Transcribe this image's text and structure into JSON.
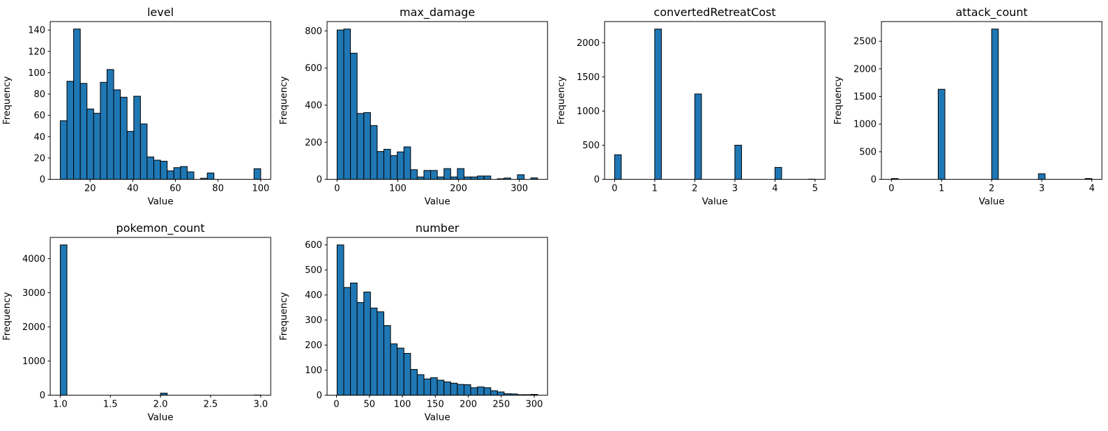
{
  "figure": {
    "background": "#ffffff",
    "bar_fill": "#1f77b4",
    "bar_edge": "#000000",
    "axis_color": "#000000",
    "text_color": "#000000"
  },
  "chart_data": [
    {
      "type": "bar",
      "subtype": "histogram",
      "title": "level",
      "xlabel": "Value",
      "ylabel": "Frequency",
      "bin_start": 6,
      "bin_width": 3.1333,
      "values": [
        55,
        92,
        141,
        90,
        66,
        62,
        91,
        103,
        84,
        77,
        45,
        78,
        52,
        21,
        18,
        17,
        8,
        11,
        12,
        7,
        0,
        1,
        6,
        0,
        0,
        0,
        0,
        0,
        0,
        10
      ],
      "xlim": [
        1.3,
        104.7
      ],
      "ylim": [
        0,
        148
      ],
      "grid": false,
      "xticks": [
        {
          "v": 20,
          "label": "20"
        },
        {
          "v": 40,
          "label": "40"
        },
        {
          "v": 60,
          "label": "60"
        },
        {
          "v": 80,
          "label": "80"
        },
        {
          "v": 100,
          "label": "100"
        }
      ],
      "yticks": [
        {
          "v": 0,
          "label": "0"
        },
        {
          "v": 20,
          "label": "20"
        },
        {
          "v": 40,
          "label": "40"
        },
        {
          "v": 60,
          "label": "60"
        },
        {
          "v": 80,
          "label": "80"
        },
        {
          "v": 100,
          "label": "100"
        },
        {
          "v": 120,
          "label": "120"
        },
        {
          "v": 140,
          "label": "140"
        }
      ]
    },
    {
      "type": "bar",
      "subtype": "histogram",
      "title": "max_damage",
      "xlabel": "Value",
      "ylabel": "Frequency",
      "bin_start": 0,
      "bin_width": 11,
      "values": [
        805,
        810,
        680,
        355,
        360,
        290,
        150,
        162,
        128,
        148,
        175,
        52,
        13,
        48,
        48,
        13,
        58,
        13,
        58,
        13,
        13,
        18,
        18,
        0,
        3,
        7,
        0,
        25,
        0,
        8
      ],
      "xlim": [
        -16.5,
        346.5
      ],
      "ylim": [
        0,
        850.5
      ],
      "grid": false,
      "xticks": [
        {
          "v": 0,
          "label": "0"
        },
        {
          "v": 100,
          "label": "100"
        },
        {
          "v": 200,
          "label": "200"
        },
        {
          "v": 300,
          "label": "300"
        }
      ],
      "yticks": [
        {
          "v": 0,
          "label": "0"
        },
        {
          "v": 200,
          "label": "200"
        },
        {
          "v": 400,
          "label": "400"
        },
        {
          "v": 600,
          "label": "600"
        },
        {
          "v": 800,
          "label": "800"
        }
      ]
    },
    {
      "type": "bar",
      "subtype": "histogram",
      "title": "convertedRetreatCost",
      "xlabel": "Value",
      "ylabel": "Frequency",
      "bin_start": 0,
      "bin_width": 0.16667,
      "values": [
        360,
        0,
        0,
        0,
        0,
        0,
        2200,
        0,
        0,
        0,
        0,
        0,
        1250,
        0,
        0,
        0,
        0,
        0,
        500,
        0,
        0,
        0,
        0,
        0,
        175,
        0,
        0,
        0,
        0,
        3
      ],
      "xlim": [
        -0.25,
        5.25
      ],
      "ylim": [
        0,
        2310
      ],
      "grid": false,
      "xticks": [
        {
          "v": 0,
          "label": "0"
        },
        {
          "v": 1,
          "label": "1"
        },
        {
          "v": 2,
          "label": "2"
        },
        {
          "v": 3,
          "label": "3"
        },
        {
          "v": 4,
          "label": "4"
        },
        {
          "v": 5,
          "label": "5"
        }
      ],
      "yticks": [
        {
          "v": 0,
          "label": "0"
        },
        {
          "v": 500,
          "label": "500"
        },
        {
          "v": 1000,
          "label": "1000"
        },
        {
          "v": 1500,
          "label": "1500"
        },
        {
          "v": 2000,
          "label": "2000"
        }
      ]
    },
    {
      "type": "bar",
      "subtype": "histogram",
      "title": "attack_count",
      "xlabel": "Value",
      "ylabel": "Frequency",
      "bin_start": 0,
      "bin_width": 0.13333,
      "values": [
        15,
        0,
        0,
        0,
        0,
        0,
        0,
        1630,
        0,
        0,
        0,
        0,
        0,
        0,
        0,
        2720,
        0,
        0,
        0,
        0,
        0,
        0,
        100,
        0,
        0,
        0,
        0,
        0,
        0,
        15
      ],
      "xlim": [
        -0.2,
        4.2
      ],
      "ylim": [
        0,
        2856
      ],
      "grid": false,
      "xticks": [
        {
          "v": 0,
          "label": "0"
        },
        {
          "v": 1,
          "label": "1"
        },
        {
          "v": 2,
          "label": "2"
        },
        {
          "v": 3,
          "label": "3"
        },
        {
          "v": 4,
          "label": "4"
        }
      ],
      "yticks": [
        {
          "v": 0,
          "label": "0"
        },
        {
          "v": 500,
          "label": "500"
        },
        {
          "v": 1000,
          "label": "1000"
        },
        {
          "v": 1500,
          "label": "1500"
        },
        {
          "v": 2000,
          "label": "2000"
        },
        {
          "v": 2500,
          "label": "2500"
        }
      ]
    },
    {
      "type": "bar",
      "subtype": "histogram",
      "title": "pokemon_count",
      "xlabel": "Value",
      "ylabel": "Frequency",
      "bin_start": 1,
      "bin_width": 0.06667,
      "values": [
        4400,
        0,
        0,
        0,
        0,
        0,
        0,
        0,
        0,
        0,
        0,
        0,
        0,
        0,
        0,
        60,
        0,
        0,
        0,
        0,
        0,
        0,
        0,
        0,
        0,
        0,
        0,
        0,
        0,
        5
      ],
      "xlim": [
        0.9,
        3.1
      ],
      "ylim": [
        0,
        4620
      ],
      "grid": false,
      "xticks": [
        {
          "v": 1.0,
          "label": "1.0"
        },
        {
          "v": 1.5,
          "label": "1.5"
        },
        {
          "v": 2.0,
          "label": "2.0"
        },
        {
          "v": 2.5,
          "label": "2.5"
        },
        {
          "v": 3.0,
          "label": "3.0"
        }
      ],
      "yticks": [
        {
          "v": 0,
          "label": "0"
        },
        {
          "v": 1000,
          "label": "1000"
        },
        {
          "v": 2000,
          "label": "2000"
        },
        {
          "v": 3000,
          "label": "3000"
        },
        {
          "v": 4000,
          "label": "4000"
        }
      ]
    },
    {
      "type": "bar",
      "subtype": "histogram",
      "title": "number",
      "xlabel": "Value",
      "ylabel": "Frequency",
      "bin_start": 1,
      "bin_width": 10.1333,
      "values": [
        600,
        430,
        448,
        370,
        412,
        348,
        333,
        278,
        205,
        188,
        167,
        103,
        82,
        65,
        70,
        60,
        53,
        48,
        43,
        42,
        30,
        33,
        30,
        18,
        13,
        6,
        5,
        2,
        2,
        3
      ],
      "xlim": [
        -14.2,
        320.2
      ],
      "ylim": [
        0,
        630
      ],
      "grid": false,
      "xticks": [
        {
          "v": 0,
          "label": "0"
        },
        {
          "v": 50,
          "label": "50"
        },
        {
          "v": 100,
          "label": "100"
        },
        {
          "v": 150,
          "label": "150"
        },
        {
          "v": 200,
          "label": "200"
        },
        {
          "v": 250,
          "label": "250"
        },
        {
          "v": 300,
          "label": "300"
        }
      ],
      "yticks": [
        {
          "v": 0,
          "label": "0"
        },
        {
          "v": 100,
          "label": "100"
        },
        {
          "v": 200,
          "label": "200"
        },
        {
          "v": 300,
          "label": "300"
        },
        {
          "v": 400,
          "label": "400"
        },
        {
          "v": 500,
          "label": "500"
        },
        {
          "v": 600,
          "label": "600"
        }
      ]
    }
  ]
}
